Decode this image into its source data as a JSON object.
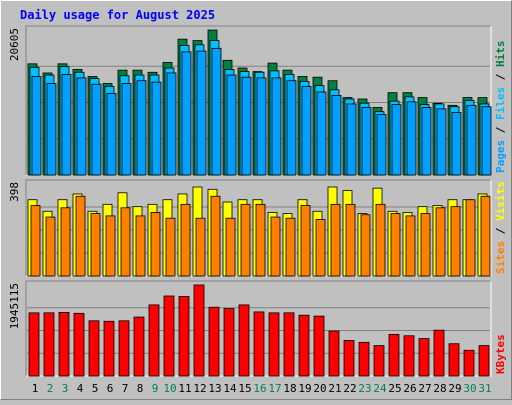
{
  "chart_data": {
    "type": "bar",
    "title": "Daily usage for August 2025",
    "categories": [
      "1",
      "2",
      "3",
      "4",
      "5",
      "6",
      "7",
      "8",
      "9",
      "10",
      "11",
      "12",
      "13",
      "14",
      "15",
      "16",
      "17",
      "18",
      "19",
      "20",
      "21",
      "22",
      "23",
      "24",
      "25",
      "26",
      "27",
      "28",
      "29",
      "30",
      "31"
    ],
    "weekend_days": [
      "2",
      "3",
      "9",
      "10",
      "16",
      "17",
      "23",
      "24",
      "30",
      "31"
    ],
    "panels": [
      {
        "name": "hits-files-pages",
        "ymax_label": "20605",
        "ylim": [
          0,
          20605
        ],
        "legend": [
          "Pages",
          "Files",
          "Hits"
        ],
        "series": [
          {
            "name": "Hits",
            "color": "#008040",
            "values": [
              15800,
              14500,
              15800,
              15000,
              14000,
              13000,
              14900,
              14900,
              14600,
              16000,
              19300,
              19100,
              20600,
              16300,
              15200,
              14700,
              15900,
              14900,
              14000,
              13900,
              13400,
              11000,
              10800,
              9600,
              11700,
              11700,
              11000,
              10200,
              9900,
              11000,
              11000
            ]
          },
          {
            "name": "Files",
            "color": "#00c0ff",
            "values": [
              15300,
              14200,
              15400,
              14600,
              13700,
              12600,
              14100,
              14200,
              14200,
              15200,
              18400,
              18500,
              19100,
              15000,
              14700,
              14600,
              14800,
              14300,
              13300,
              12700,
              12100,
              10800,
              10200,
              9000,
              10500,
              11100,
              10000,
              10100,
              9700,
              10600,
              10100
            ]
          },
          {
            "name": "Pages",
            "color": "#00a0ff",
            "values": [
              14000,
              13000,
              14300,
              13800,
              12900,
              11600,
              13000,
              13400,
              13200,
              14500,
              17500,
              17600,
              18000,
              14200,
              13900,
              13800,
              13800,
              13400,
              12600,
              11800,
              11300,
              10100,
              9600,
              8600,
              10000,
              10400,
              9600,
              9400,
              8900,
              9900,
              9700
            ]
          }
        ]
      },
      {
        "name": "visits-sites",
        "ymax_label": "398",
        "ylim": [
          0,
          398
        ],
        "legend": [
          "Sites",
          "Visits"
        ],
        "series": [
          {
            "name": "Visits",
            "color": "#ffff00",
            "values": [
              330,
              280,
              330,
              355,
              280,
              310,
              360,
              300,
              310,
              330,
              355,
              385,
              375,
              320,
              330,
              330,
              275,
              270,
              330,
              280,
              385,
              370,
              270,
              380,
              280,
              275,
              300,
              305,
              330,
              330,
              355
            ]
          },
          {
            "name": "Sites",
            "color": "#ff8000",
            "values": [
              305,
              255,
              295,
              345,
              270,
              260,
              295,
              260,
              275,
              250,
              310,
              250,
              345,
              250,
              310,
              310,
              255,
              250,
              305,
              245,
              310,
              310,
              265,
              310,
              270,
              260,
              270,
              295,
              300,
              330,
              345
            ]
          }
        ]
      },
      {
        "name": "kbytes",
        "ymax_label": "1945115",
        "ylim": [
          0,
          1945115
        ],
        "legend": [
          "KBytes"
        ],
        "series": [
          {
            "name": "KBytes",
            "color": "#ff0000",
            "values": [
              1350000,
              1350000,
              1360000,
              1340000,
              1180000,
              1170000,
              1180000,
              1260000,
              1520000,
              1710000,
              1700000,
              1945115,
              1470000,
              1440000,
              1520000,
              1370000,
              1350000,
              1350000,
              1300000,
              1280000,
              960000,
              760000,
              720000,
              650000,
              890000,
              860000,
              800000,
              980000,
              690000,
              550000,
              650000
            ]
          }
        ]
      }
    ]
  }
}
